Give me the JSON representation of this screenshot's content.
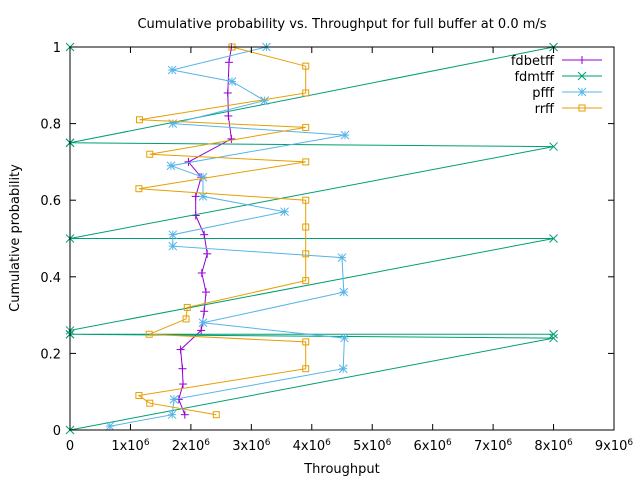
{
  "chart_data": {
    "type": "line",
    "title": "Cumulative probability vs. Throughput for full buffer at 0.0 m/s",
    "xlabel": "Throughput",
    "ylabel": "Cumulative probability",
    "xlim": [
      0,
      9000000
    ],
    "ylim": [
      0,
      1
    ],
    "x_ticks": [
      0,
      1000000,
      2000000,
      3000000,
      4000000,
      5000000,
      6000000,
      7000000,
      8000000,
      9000000
    ],
    "x_tick_labels": [
      {
        "base": "0",
        "exp": ""
      },
      {
        "base": "1x10",
        "exp": "6"
      },
      {
        "base": "2x10",
        "exp": "6"
      },
      {
        "base": "3x10",
        "exp": "6"
      },
      {
        "base": "4x10",
        "exp": "6"
      },
      {
        "base": "5x10",
        "exp": "6"
      },
      {
        "base": "6x10",
        "exp": "6"
      },
      {
        "base": "7x10",
        "exp": "6"
      },
      {
        "base": "8x10",
        "exp": "6"
      },
      {
        "base": "9x10",
        "exp": "6"
      }
    ],
    "y_ticks": [
      0,
      0.2,
      0.4,
      0.6,
      0.8,
      1
    ],
    "y_tick_labels": [
      "0",
      "0.2",
      "0.4",
      "0.6",
      "0.8",
      "1"
    ],
    "grid": false,
    "legend_position": "top-right",
    "series": [
      {
        "name": "fdbetff",
        "color": "#9400d3",
        "marker": "plus",
        "points": [
          [
            1900000,
            0.04
          ],
          [
            1800000,
            0.08
          ],
          [
            1870000,
            0.12
          ],
          [
            1860000,
            0.16
          ],
          [
            1830000,
            0.21
          ],
          [
            2170000,
            0.26
          ],
          [
            2220000,
            0.31
          ],
          [
            2250000,
            0.36
          ],
          [
            2180000,
            0.41
          ],
          [
            2270000,
            0.46
          ],
          [
            2220000,
            0.51
          ],
          [
            2080000,
            0.56
          ],
          [
            2080000,
            0.61
          ],
          [
            2170000,
            0.66
          ],
          [
            1960000,
            0.7
          ],
          [
            2670000,
            0.76
          ],
          [
            2620000,
            0.82
          ],
          [
            2610000,
            0.88
          ],
          [
            2630000,
            0.96
          ],
          [
            2670000,
            1.0
          ]
        ]
      },
      {
        "name": "fdmtff",
        "color": "#009e73",
        "marker": "x",
        "points": [
          [
            0,
            0
          ],
          [
            8000000,
            0.24
          ],
          [
            0,
            0.25
          ],
          [
            8000000,
            0.25
          ],
          [
            0,
            0.25
          ],
          [
            0,
            0.26
          ],
          [
            8000000,
            0.5
          ],
          [
            0,
            0.5
          ],
          [
            8000000,
            0.74
          ],
          [
            0,
            0.75
          ],
          [
            0,
            0.75
          ],
          [
            8000000,
            1.0
          ],
          [
            0,
            1.0
          ]
        ]
      },
      {
        "name": "pfff",
        "color": "#56b4e9",
        "marker": "star",
        "points": [
          [
            660000,
            0.01
          ],
          [
            1690000,
            0.04
          ],
          [
            1720000,
            0.08
          ],
          [
            4520000,
            0.16
          ],
          [
            4540000,
            0.24
          ],
          [
            2200000,
            0.28
          ],
          [
            4530000,
            0.36
          ],
          [
            4500000,
            0.45
          ],
          [
            1700000,
            0.48
          ],
          [
            1700000,
            0.51
          ],
          [
            3550000,
            0.57
          ],
          [
            2200000,
            0.61
          ],
          [
            2200000,
            0.66
          ],
          [
            1670000,
            0.69
          ],
          [
            4550000,
            0.77
          ],
          [
            1700000,
            0.8
          ],
          [
            3220000,
            0.86
          ],
          [
            2680000,
            0.91
          ],
          [
            1690000,
            0.94
          ],
          [
            3250000,
            1.0
          ]
        ]
      },
      {
        "name": "rrff",
        "color": "#e69f00",
        "marker": "square",
        "points": [
          [
            2420000,
            0.04
          ],
          [
            1320000,
            0.07
          ],
          [
            1140000,
            0.09
          ],
          [
            3900000,
            0.16
          ],
          [
            3900000,
            0.23
          ],
          [
            1310000,
            0.25
          ],
          [
            1920000,
            0.29
          ],
          [
            1940000,
            0.32
          ],
          [
            3900000,
            0.39
          ],
          [
            3900000,
            0.46
          ],
          [
            3900000,
            0.53
          ],
          [
            3900000,
            0.6
          ],
          [
            1140000,
            0.63
          ],
          [
            3900000,
            0.7
          ],
          [
            1320000,
            0.72
          ],
          [
            3900000,
            0.79
          ],
          [
            1150000,
            0.81
          ],
          [
            3900000,
            0.88
          ],
          [
            3900000,
            0.95
          ],
          [
            2680000,
            1.0
          ]
        ]
      }
    ]
  }
}
